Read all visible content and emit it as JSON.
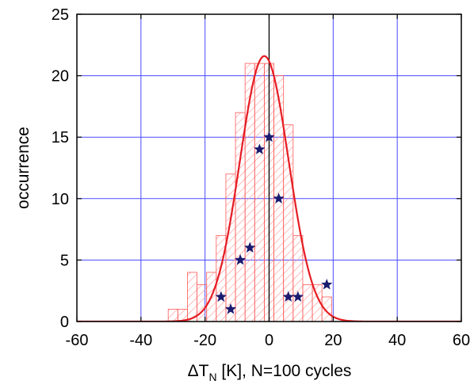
{
  "chart_data": {
    "type": "bar",
    "xlabel": {
      "prefix": "ΔT",
      "subscript": "N",
      "suffix": " [K], N=100 cycles"
    },
    "ylabel": "occurrence",
    "xlim": [
      -60,
      60
    ],
    "ylim": [
      0,
      25
    ],
    "xticks": [
      "-60",
      "-40",
      "-20",
      "0",
      "20",
      "40",
      "60"
    ],
    "yticks": [
      "0",
      "5",
      "10",
      "15",
      "20",
      "25"
    ],
    "grid": true,
    "bin_width": 3,
    "histogram": {
      "color": "#ff5a5a",
      "bins": [
        {
          "x": -30,
          "y": 1
        },
        {
          "x": -27,
          "y": 1
        },
        {
          "x": -24,
          "y": 4
        },
        {
          "x": -21,
          "y": 3
        },
        {
          "x": -18,
          "y": 4
        },
        {
          "x": -15,
          "y": 7
        },
        {
          "x": -12,
          "y": 12
        },
        {
          "x": -9,
          "y": 17
        },
        {
          "x": -6,
          "y": 21
        },
        {
          "x": -3,
          "y": 21
        },
        {
          "x": 0,
          "y": 21
        },
        {
          "x": 3,
          "y": 20
        },
        {
          "x": 6,
          "y": 16
        },
        {
          "x": 9,
          "y": 7
        },
        {
          "x": 12,
          "y": 3
        },
        {
          "x": 15,
          "y": 3
        },
        {
          "x": 18,
          "y": 2
        }
      ]
    },
    "gaussian_fit": {
      "color": "#e51c23",
      "amplitude": 21.6,
      "mean": -1.5,
      "sigma": 7.6
    },
    "stars": {
      "color": "#1a1a6e",
      "points": [
        {
          "x": -15,
          "y": 2
        },
        {
          "x": -12,
          "y": 1
        },
        {
          "x": -9,
          "y": 5
        },
        {
          "x": -6,
          "y": 6
        },
        {
          "x": -3,
          "y": 14
        },
        {
          "x": 0,
          "y": 15
        },
        {
          "x": 3,
          "y": 10
        },
        {
          "x": 6,
          "y": 2
        },
        {
          "x": 9,
          "y": 2
        },
        {
          "x": 18,
          "y": 3
        }
      ]
    },
    "grid_color": "#4a4aff",
    "zero_line_color": "#000000"
  }
}
